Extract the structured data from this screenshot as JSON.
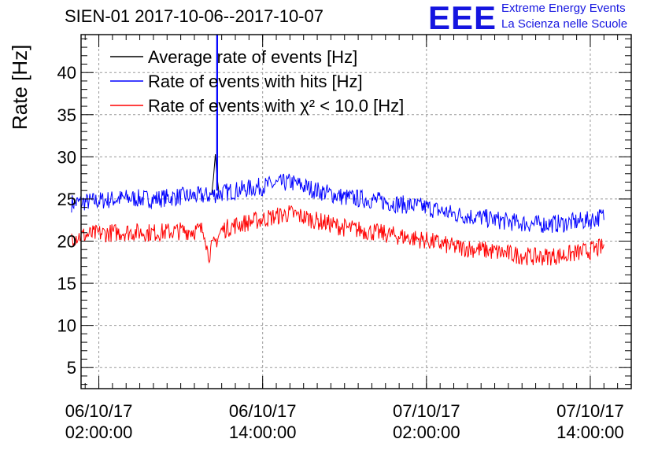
{
  "header": {
    "title": "SIEN-01 2017-10-06--2017-10-07",
    "logo_text": "EEE",
    "logo_line1": "Extreme Energy Events",
    "logo_line2": "La Scienza nelle Scuole",
    "logo_color": "#1515e0"
  },
  "chart_data": {
    "type": "line",
    "title": "SIEN-01 2017-10-06--2017-10-07",
    "ylabel": "Rate [Hz]",
    "xlabel": "",
    "ylim": [
      2.5,
      44.5
    ],
    "yticks": [
      5,
      10,
      15,
      20,
      25,
      30,
      35,
      40
    ],
    "x_range": [
      "06/10/17 00:42:00",
      "07/10/17 17:00:00"
    ],
    "xticks": [
      {
        "at": "06/10/17 02:00:00",
        "line1": "06/10/17",
        "line2": "02:00:00"
      },
      {
        "at": "06/10/17 14:00:00",
        "line1": "06/10/17",
        "line2": "14:00:00"
      },
      {
        "at": "07/10/17 02:00:00",
        "line1": "07/10/17",
        "line2": "02:00:00"
      },
      {
        "at": "07/10/17 14:00:00",
        "line1": "07/10/17",
        "line2": "14:00:00"
      }
    ],
    "grid": true,
    "legend_position": "top-left",
    "series": [
      {
        "name": "Average rate of events [Hz]",
        "color": "#000000",
        "points": [
          [
            "06/10/17 10:16:00",
            25.5
          ],
          [
            "06/10/17 10:24:00",
            27.5
          ],
          [
            "06/10/17 10:32:00",
            30.3
          ],
          [
            "06/10/17 10:40:00",
            27.5
          ],
          [
            "06/10/17 10:48:00",
            25.8
          ]
        ]
      },
      {
        "name": "Rate of events with hits [Hz]",
        "color": "#0000ff",
        "points": [
          [
            "06/10/17 00:00:00",
            24.5
          ],
          [
            "06/10/17 02:00:00",
            24.8
          ],
          [
            "06/10/17 04:00:00",
            25.1
          ],
          [
            "06/10/17 06:00:00",
            25.0
          ],
          [
            "06/10/17 08:00:00",
            25.3
          ],
          [
            "06/10/17 10:00:00",
            25.4
          ],
          [
            "06/10/17 12:00:00",
            26.0
          ],
          [
            "06/10/17 14:00:00",
            26.5
          ],
          [
            "06/10/17 16:00:00",
            27.0
          ],
          [
            "06/10/17 18:00:00",
            26.0
          ],
          [
            "06/10/17 20:00:00",
            25.2
          ],
          [
            "06/10/17 22:00:00",
            24.9
          ],
          [
            "07/10/17 00:00:00",
            24.4
          ],
          [
            "07/10/17 02:00:00",
            24.0
          ],
          [
            "07/10/17 04:00:00",
            23.2
          ],
          [
            "07/10/17 06:00:00",
            22.8
          ],
          [
            "07/10/17 08:00:00",
            22.3
          ],
          [
            "07/10/17 10:00:00",
            22.0
          ],
          [
            "07/10/17 12:00:00",
            22.1
          ],
          [
            "07/10/17 14:00:00",
            22.5
          ],
          [
            "07/10/17 15:00:00",
            23.0
          ]
        ],
        "spike": {
          "at": "06/10/17 10:40:00",
          "value": 44.5
        }
      },
      {
        "name": "Rate of events with χ² < 10.0 [Hz]",
        "color": "#ff0000",
        "points": [
          [
            "06/10/17 00:00:00",
            20.5
          ],
          [
            "06/10/17 02:00:00",
            20.9
          ],
          [
            "06/10/17 04:00:00",
            21.1
          ],
          [
            "06/10/17 06:00:00",
            21.0
          ],
          [
            "06/10/17 08:00:00",
            21.2
          ],
          [
            "06/10/17 09:45:00",
            21.3
          ],
          [
            "06/10/17 10:00:00",
            18.3
          ],
          [
            "06/10/17 11:00:00",
            21.3
          ],
          [
            "06/10/17 12:00:00",
            21.9
          ],
          [
            "06/10/17 14:00:00",
            22.6
          ],
          [
            "06/10/17 16:00:00",
            23.3
          ],
          [
            "06/10/17 18:00:00",
            22.4
          ],
          [
            "06/10/17 20:00:00",
            21.6
          ],
          [
            "06/10/17 22:00:00",
            21.1
          ],
          [
            "07/10/17 00:00:00",
            20.6
          ],
          [
            "07/10/17 02:00:00",
            20.1
          ],
          [
            "07/10/17 04:00:00",
            19.3
          ],
          [
            "07/10/17 06:00:00",
            19.0
          ],
          [
            "07/10/17 08:00:00",
            18.5
          ],
          [
            "07/10/17 10:00:00",
            18.1
          ],
          [
            "07/10/17 12:00:00",
            18.3
          ],
          [
            "07/10/17 14:00:00",
            18.9
          ],
          [
            "07/10/17 15:00:00",
            19.3
          ]
        ]
      }
    ]
  }
}
